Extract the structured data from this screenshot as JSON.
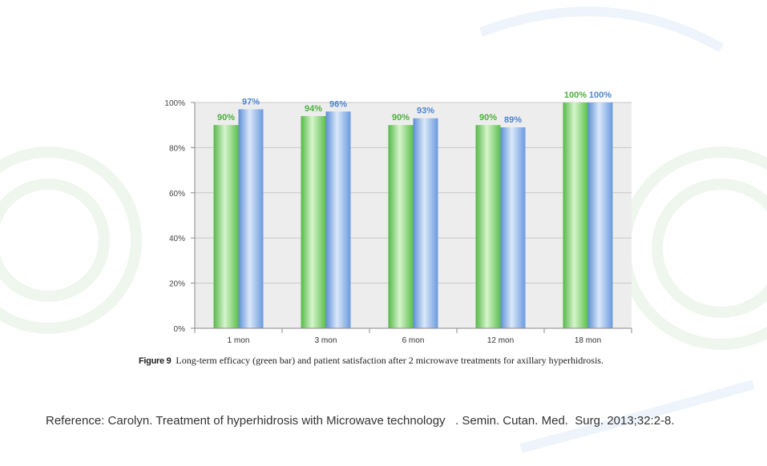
{
  "chart_data": {
    "type": "bar",
    "categories": [
      "1 mon",
      "3 mon",
      "6 mon",
      "12 mon",
      "18 mon"
    ],
    "series": [
      {
        "name": "Long-term efficacy",
        "color": "#6cc95a",
        "label_color": "#4caf3c",
        "values": [
          90,
          94,
          90,
          90,
          100
        ]
      },
      {
        "name": "Patient satisfaction",
        "color": "#7aa7e3",
        "label_color": "#4f86cf",
        "values": [
          97,
          96,
          93,
          89,
          100
        ]
      }
    ],
    "value_labels": [
      [
        "90%",
        "94%",
        "90%",
        "90%",
        "100%"
      ],
      [
        "97%",
        "96%",
        "93%",
        "89%",
        "100%"
      ]
    ],
    "y_ticks": [
      0,
      20,
      40,
      60,
      80,
      100
    ],
    "y_tick_labels": [
      "0%",
      "20%",
      "40%",
      "60%",
      "80%",
      "100%"
    ],
    "ylim": [
      0,
      100
    ],
    "grid": true,
    "xlabel": "",
    "ylabel": ""
  },
  "caption": {
    "figure_label": "Figure 9",
    "text": "Long-term efficacy (green bar) and patient satisfaction after 2 microwave treatments for axillary hyperhidrosis."
  },
  "reference": "Reference: Carolyn. Treatment of hyperhidrosis with Microwave technology   . Semin. Cutan. Med.  Surg. 2013;32:2-8."
}
